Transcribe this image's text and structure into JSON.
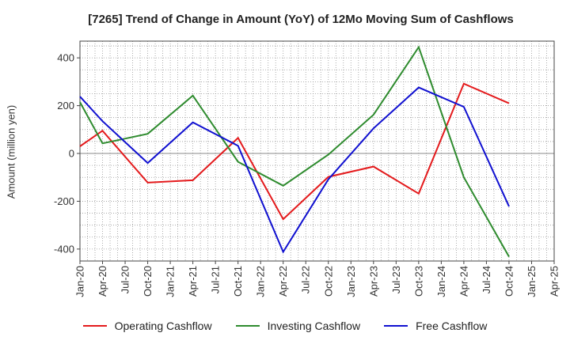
{
  "chart_data": {
    "type": "line",
    "title": "[7265]  Trend of Change in Amount (YoY) of 12Mo Moving Sum of Cashflows",
    "xlabel": "",
    "ylabel": "Amount (million yen)",
    "ylim": [
      -450,
      470
    ],
    "yticks": [
      400,
      200,
      0,
      -200,
      -400
    ],
    "ytick_labels": [
      "400",
      "200",
      "0",
      "-200",
      "-400"
    ],
    "categories": [
      "Jan-20",
      "Apr-20",
      "Jul-20",
      "Oct-20",
      "Jan-21",
      "Apr-21",
      "Jul-21",
      "Oct-21",
      "Jan-22",
      "Apr-22",
      "Jul-22",
      "Oct-22",
      "Jan-23",
      "Apr-23",
      "Jul-23",
      "Oct-23",
      "Jan-24",
      "Apr-24",
      "Jul-24",
      "Oct-24",
      "Jan-25",
      "Apr-25"
    ],
    "grid": true,
    "legend": "bottom",
    "series": [
      {
        "name": "Operating Cashflow",
        "color": "#e41a1c",
        "values": [
          30,
          95,
          null,
          -122,
          null,
          -112,
          null,
          65,
          null,
          -275,
          null,
          -98,
          null,
          -55,
          null,
          -168,
          null,
          292,
          null,
          210,
          null,
          null
        ]
      },
      {
        "name": "Investing Cashflow",
        "color": "#2e8b2e",
        "values": [
          215,
          42,
          null,
          82,
          null,
          242,
          null,
          -35,
          null,
          -135,
          null,
          -5,
          null,
          162,
          null,
          445,
          null,
          -100,
          null,
          -432,
          null,
          null
        ]
      },
      {
        "name": "Free Cashflow",
        "color": "#1010d0",
        "values": [
          238,
          135,
          null,
          -40,
          null,
          130,
          null,
          32,
          null,
          -412,
          null,
          -108,
          null,
          105,
          null,
          276,
          null,
          195,
          null,
          -222,
          null,
          null
        ]
      }
    ]
  }
}
